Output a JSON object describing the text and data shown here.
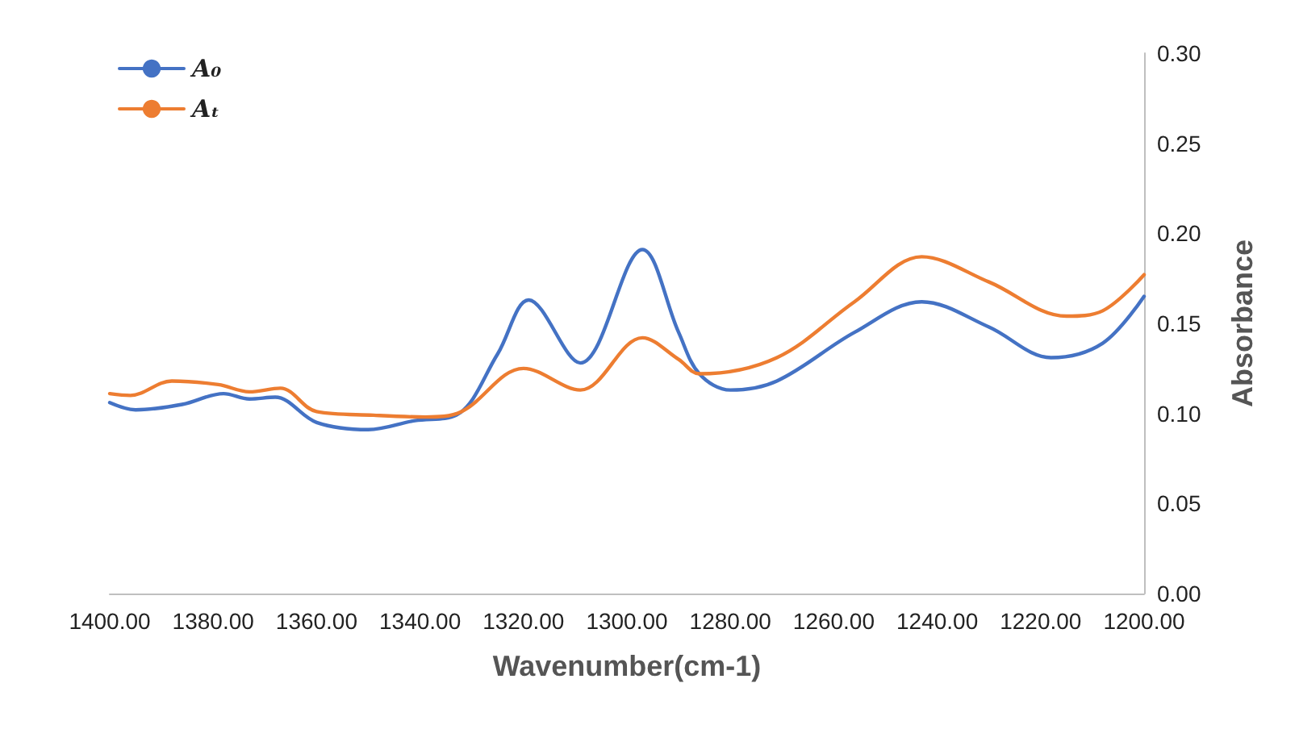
{
  "chart_data": {
    "type": "line",
    "xlabel": "Wavenumber(cm-1)",
    "ylabel": "Absorbance",
    "legend": "top left",
    "grid": false,
    "marker": "none",
    "line_style": "solid",
    "xlim": [
      1400,
      1200
    ],
    "xticks": [
      {
        "value": 1400,
        "label": "1400.00"
      },
      {
        "value": 1380,
        "label": "1380.00"
      },
      {
        "value": 1360,
        "label": "1360.00"
      },
      {
        "value": 1340,
        "label": "1340.00"
      },
      {
        "value": 1320,
        "label": "1320.00"
      },
      {
        "value": 1300,
        "label": "1300.00"
      },
      {
        "value": 1280,
        "label": "1280.00"
      },
      {
        "value": 1260,
        "label": "1260.00"
      },
      {
        "value": 1240,
        "label": "1240.00"
      },
      {
        "value": 1220,
        "label": "1220.00"
      },
      {
        "value": 1200,
        "label": "1200.00"
      }
    ],
    "ylim": [
      0,
      0.3
    ],
    "yticks": [
      {
        "value": 0,
        "label": "0.00"
      },
      {
        "value": 0.05,
        "label": "0.05"
      },
      {
        "value": 0.1,
        "label": "0.10"
      },
      {
        "value": 0.15,
        "label": "0.15"
      },
      {
        "value": 0.2,
        "label": "0.20"
      },
      {
        "value": 0.25,
        "label": "0.25"
      },
      {
        "value": 0.3,
        "label": "0.30"
      }
    ],
    "series": [
      {
        "name": "A₀",
        "color": "#4472c4",
        "x": [
          1400,
          1395,
          1386,
          1378,
          1373,
          1368,
          1360,
          1350,
          1341,
          1333,
          1325,
          1319,
          1309,
          1297,
          1290,
          1286,
          1280,
          1271,
          1256,
          1243,
          1230,
          1218,
          1208,
          1200
        ],
        "values": [
          0.106,
          0.102,
          0.105,
          0.111,
          0.108,
          0.109,
          0.095,
          0.091,
          0.096,
          0.099,
          0.133,
          0.163,
          0.128,
          0.191,
          0.145,
          0.122,
          0.113,
          0.118,
          0.145,
          0.162,
          0.148,
          0.131,
          0.139,
          0.165
        ]
      },
      {
        "name": "Aₜ",
        "color": "#ed7d31",
        "x": [
          1400,
          1396,
          1388,
          1379,
          1373,
          1367,
          1360,
          1349,
          1339,
          1332,
          1320,
          1309,
          1297,
          1290,
          1286,
          1271,
          1256,
          1243,
          1230,
          1215,
          1208,
          1200
        ],
        "values": [
          0.111,
          0.11,
          0.118,
          0.116,
          0.112,
          0.114,
          0.101,
          0.099,
          0.098,
          0.101,
          0.125,
          0.113,
          0.142,
          0.13,
          0.122,
          0.131,
          0.162,
          0.187,
          0.173,
          0.154,
          0.157,
          0.177
        ]
      }
    ]
  }
}
